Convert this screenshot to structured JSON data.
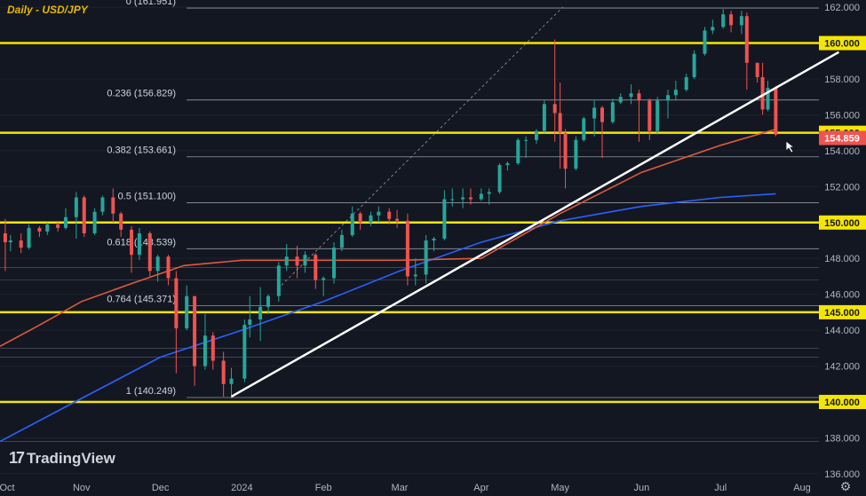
{
  "title": "Daily - USD/JPY",
  "watermark": {
    "logo": "17",
    "text": "TradingView"
  },
  "settings_icon": "gear-icon",
  "colors": {
    "background": "#131722",
    "up": "#26a69a",
    "down": "#ef5350",
    "yellow": "#f5e600",
    "ma_red": "#e05a3a",
    "ma_blue": "#2962ff",
    "trendline": "#ffffff",
    "price_tag": "#ef5350",
    "yellow_tag": "#f5e600"
  },
  "chart_data": {
    "type": "candlestick",
    "title": "Daily - USD/JPY",
    "ylim": [
      135.7,
      162.4
    ],
    "y_ticks": [
      "162.000",
      "160.000",
      "158.000",
      "156.000",
      "154.000",
      "152.000",
      "150.000",
      "148.000",
      "146.000",
      "144.000",
      "142.000",
      "140.000",
      "138.000",
      "136.000"
    ],
    "x_ticks": [
      "Oct",
      "Nov",
      "Dec",
      "2024",
      "Feb",
      "Mar",
      "Apr",
      "May",
      "Jun",
      "Jul",
      "Aug"
    ],
    "current_price": {
      "label": "154.859",
      "value": 154.859
    },
    "horizontal_levels": [
      {
        "value": 160.0,
        "label": "160.000"
      },
      {
        "value": 155.0,
        "label": "155.000"
      },
      {
        "value": 150.0,
        "label": "150.000"
      },
      {
        "value": 145.0,
        "label": "145.000"
      },
      {
        "value": 140.0,
        "label": "140.000"
      }
    ],
    "fibonacci": [
      {
        "label": "0 (161.951)",
        "value": 161.951
      },
      {
        "label": "0.236 (156.829)",
        "value": 156.829
      },
      {
        "label": "0.382 (153.661)",
        "value": 153.661
      },
      {
        "label": "0.5 (151.100)",
        "value": 151.1
      },
      {
        "label": "0.618 (148.539)",
        "value": 148.539
      },
      {
        "label": "0.764 (145.371)",
        "value": 145.371
      },
      {
        "label": "1 (140.249)",
        "value": 140.249
      }
    ],
    "trendline": {
      "x": [
        "2023-12-28",
        "2024-08-15"
      ],
      "y": [
        140.3,
        159.5
      ]
    },
    "dashed_line": {
      "x": [
        "2024-01-16",
        "2024-05-02"
      ],
      "y": [
        146.5,
        162.0
      ]
    },
    "ma_200": {
      "x": [
        "2023-10-01",
        "2023-11-01",
        "2023-12-01",
        "2024-01-01",
        "2024-02-01",
        "2024-03-01",
        "2024-04-01",
        "2024-05-01",
        "2024-06-01",
        "2024-07-01",
        "2024-07-22"
      ],
      "y": [
        137.8,
        140.2,
        142.5,
        144.0,
        145.6,
        147.3,
        148.9,
        150.1,
        150.9,
        151.4,
        151.6
      ]
    },
    "ma_100": {
      "x": [
        "2023-10-01",
        "2023-10-15",
        "2023-11-01",
        "2023-11-20",
        "2023-12-10",
        "2024-01-01",
        "2024-02-01",
        "2024-03-01",
        "2024-04-01",
        "2024-05-01",
        "2024-06-01",
        "2024-07-01",
        "2024-07-22"
      ],
      "y": [
        143.1,
        144.2,
        145.6,
        146.6,
        147.6,
        147.9,
        147.9,
        147.9,
        148.0,
        150.5,
        152.8,
        154.3,
        155.2
      ]
    },
    "candles": [
      {
        "d": "2023-09-29",
        "o": 149.3,
        "h": 149.7,
        "l": 148.8,
        "c": 149.4
      },
      {
        "d": "2023-10-03",
        "o": 149.4,
        "h": 150.2,
        "l": 147.3,
        "c": 148.9
      },
      {
        "d": "2023-10-05",
        "o": 148.9,
        "h": 149.3,
        "l": 148.4,
        "c": 149.0
      },
      {
        "d": "2023-10-09",
        "o": 149.0,
        "h": 149.4,
        "l": 148.3,
        "c": 148.6
      },
      {
        "d": "2023-10-12",
        "o": 148.6,
        "h": 149.9,
        "l": 148.5,
        "c": 149.7
      },
      {
        "d": "2023-10-16",
        "o": 149.7,
        "h": 149.8,
        "l": 149.2,
        "c": 149.5
      },
      {
        "d": "2023-10-19",
        "o": 149.5,
        "h": 150.0,
        "l": 149.3,
        "c": 149.9
      },
      {
        "d": "2023-10-23",
        "o": 149.9,
        "h": 150.1,
        "l": 149.5,
        "c": 149.7
      },
      {
        "d": "2023-10-26",
        "o": 149.7,
        "h": 150.8,
        "l": 149.6,
        "c": 150.3
      },
      {
        "d": "2023-10-30",
        "o": 150.3,
        "h": 151.7,
        "l": 149.1,
        "c": 151.4
      },
      {
        "d": "2023-11-02",
        "o": 151.4,
        "h": 151.5,
        "l": 149.2,
        "c": 149.4
      },
      {
        "d": "2023-11-06",
        "o": 149.4,
        "h": 150.8,
        "l": 149.3,
        "c": 150.6
      },
      {
        "d": "2023-11-09",
        "o": 150.6,
        "h": 151.5,
        "l": 150.4,
        "c": 151.4
      },
      {
        "d": "2023-11-13",
        "o": 151.4,
        "h": 151.9,
        "l": 150.0,
        "c": 150.5
      },
      {
        "d": "2023-11-16",
        "o": 150.5,
        "h": 150.6,
        "l": 149.2,
        "c": 149.6
      },
      {
        "d": "2023-11-20",
        "o": 149.6,
        "h": 149.8,
        "l": 147.2,
        "c": 148.2
      },
      {
        "d": "2023-11-23",
        "o": 148.2,
        "h": 149.7,
        "l": 147.9,
        "c": 149.4
      },
      {
        "d": "2023-11-27",
        "o": 149.4,
        "h": 149.5,
        "l": 147.0,
        "c": 147.3
      },
      {
        "d": "2023-11-30",
        "o": 147.3,
        "h": 148.2,
        "l": 146.7,
        "c": 148.1
      },
      {
        "d": "2023-12-04",
        "o": 148.1,
        "h": 148.2,
        "l": 146.5,
        "c": 146.9
      },
      {
        "d": "2023-12-07",
        "o": 146.9,
        "h": 147.3,
        "l": 141.6,
        "c": 144.1
      },
      {
        "d": "2023-12-11",
        "o": 144.1,
        "h": 146.5,
        "l": 144.0,
        "c": 145.9
      },
      {
        "d": "2023-12-14",
        "o": 145.9,
        "h": 145.9,
        "l": 140.9,
        "c": 142.0
      },
      {
        "d": "2023-12-18",
        "o": 142.0,
        "h": 144.9,
        "l": 141.8,
        "c": 143.7
      },
      {
        "d": "2023-12-21",
        "o": 143.7,
        "h": 143.9,
        "l": 141.8,
        "c": 142.3
      },
      {
        "d": "2023-12-25",
        "o": 142.3,
        "h": 142.8,
        "l": 140.3,
        "c": 141.0
      },
      {
        "d": "2023-12-28",
        "o": 141.0,
        "h": 141.9,
        "l": 140.2,
        "c": 141.3
      },
      {
        "d": "2024-01-02",
        "o": 141.3,
        "h": 144.6,
        "l": 141.1,
        "c": 144.3
      },
      {
        "d": "2024-01-04",
        "o": 144.3,
        "h": 145.9,
        "l": 143.6,
        "c": 144.6
      },
      {
        "d": "2024-01-08",
        "o": 144.6,
        "h": 146.4,
        "l": 143.4,
        "c": 145.3
      },
      {
        "d": "2024-01-11",
        "o": 145.3,
        "h": 146.0,
        "l": 144.9,
        "c": 145.9
      },
      {
        "d": "2024-01-15",
        "o": 145.9,
        "h": 147.8,
        "l": 145.6,
        "c": 147.6
      },
      {
        "d": "2024-01-18",
        "o": 147.6,
        "h": 148.8,
        "l": 147.3,
        "c": 148.1
      },
      {
        "d": "2024-01-22",
        "o": 148.1,
        "h": 148.7,
        "l": 146.9,
        "c": 147.6
      },
      {
        "d": "2024-01-25",
        "o": 147.6,
        "h": 148.4,
        "l": 147.2,
        "c": 148.2
      },
      {
        "d": "2024-01-29",
        "o": 148.2,
        "h": 148.3,
        "l": 146.3,
        "c": 146.8
      },
      {
        "d": "2024-02-01",
        "o": 146.8,
        "h": 147.0,
        "l": 145.9,
        "c": 146.9
      },
      {
        "d": "2024-02-05",
        "o": 146.9,
        "h": 148.9,
        "l": 146.6,
        "c": 148.6
      },
      {
        "d": "2024-02-08",
        "o": 148.6,
        "h": 149.6,
        "l": 148.4,
        "c": 149.3
      },
      {
        "d": "2024-02-12",
        "o": 149.3,
        "h": 150.9,
        "l": 149.2,
        "c": 150.5
      },
      {
        "d": "2024-02-15",
        "o": 150.5,
        "h": 150.6,
        "l": 149.6,
        "c": 150.0
      },
      {
        "d": "2024-02-19",
        "o": 150.0,
        "h": 150.6,
        "l": 149.8,
        "c": 150.4
      },
      {
        "d": "2024-02-22",
        "o": 150.4,
        "h": 150.9,
        "l": 150.0,
        "c": 150.6
      },
      {
        "d": "2024-02-26",
        "o": 150.6,
        "h": 150.8,
        "l": 149.9,
        "c": 150.2
      },
      {
        "d": "2024-02-29",
        "o": 150.2,
        "h": 150.7,
        "l": 149.7,
        "c": 150.1
      },
      {
        "d": "2024-03-04",
        "o": 150.1,
        "h": 150.5,
        "l": 146.5,
        "c": 147.0
      },
      {
        "d": "2024-03-07",
        "o": 147.0,
        "h": 148.0,
        "l": 146.5,
        "c": 147.1
      },
      {
        "d": "2024-03-11",
        "o": 147.1,
        "h": 149.3,
        "l": 146.6,
        "c": 149.0
      },
      {
        "d": "2024-03-14",
        "o": 149.0,
        "h": 149.2,
        "l": 148.4,
        "c": 149.1
      },
      {
        "d": "2024-03-18",
        "o": 149.1,
        "h": 151.8,
        "l": 149.0,
        "c": 151.3
      },
      {
        "d": "2024-03-21",
        "o": 151.3,
        "h": 151.9,
        "l": 150.9,
        "c": 151.3
      },
      {
        "d": "2024-03-25",
        "o": 151.3,
        "h": 151.9,
        "l": 150.8,
        "c": 151.4
      },
      {
        "d": "2024-03-28",
        "o": 151.4,
        "h": 151.9,
        "l": 151.0,
        "c": 151.3
      },
      {
        "d": "2024-04-01",
        "o": 151.3,
        "h": 151.9,
        "l": 151.2,
        "c": 151.6
      },
      {
        "d": "2024-04-04",
        "o": 151.6,
        "h": 151.9,
        "l": 151.0,
        "c": 151.7
      },
      {
        "d": "2024-04-08",
        "o": 151.7,
        "h": 153.3,
        "l": 151.6,
        "c": 153.2
      },
      {
        "d": "2024-04-11",
        "o": 153.2,
        "h": 153.4,
        "l": 152.9,
        "c": 153.3
      },
      {
        "d": "2024-04-15",
        "o": 153.3,
        "h": 154.7,
        "l": 153.2,
        "c": 154.6
      },
      {
        "d": "2024-04-18",
        "o": 154.6,
        "h": 154.8,
        "l": 153.6,
        "c": 154.6
      },
      {
        "d": "2024-04-22",
        "o": 154.6,
        "h": 155.2,
        "l": 154.4,
        "c": 155.1
      },
      {
        "d": "2024-04-25",
        "o": 155.1,
        "h": 156.8,
        "l": 155.0,
        "c": 156.6
      },
      {
        "d": "2024-04-29",
        "o": 156.6,
        "h": 160.2,
        "l": 154.5,
        "c": 156.1
      },
      {
        "d": "2024-05-01",
        "o": 156.1,
        "h": 157.8,
        "l": 153.0,
        "c": 155.0
      },
      {
        "d": "2024-05-03",
        "o": 155.0,
        "h": 155.2,
        "l": 151.9,
        "c": 153.0
      },
      {
        "d": "2024-05-07",
        "o": 153.0,
        "h": 154.8,
        "l": 152.9,
        "c": 154.6
      },
      {
        "d": "2024-05-10",
        "o": 154.6,
        "h": 155.9,
        "l": 154.5,
        "c": 155.8
      },
      {
        "d": "2024-05-14",
        "o": 155.8,
        "h": 156.8,
        "l": 154.8,
        "c": 156.4
      },
      {
        "d": "2024-05-17",
        "o": 156.4,
        "h": 156.5,
        "l": 153.6,
        "c": 155.6
      },
      {
        "d": "2024-05-21",
        "o": 155.6,
        "h": 156.9,
        "l": 155.5,
        "c": 156.7
      },
      {
        "d": "2024-05-24",
        "o": 156.7,
        "h": 157.2,
        "l": 156.6,
        "c": 157.0
      },
      {
        "d": "2024-05-28",
        "o": 157.0,
        "h": 157.7,
        "l": 156.6,
        "c": 157.2
      },
      {
        "d": "2024-05-31",
        "o": 157.2,
        "h": 157.4,
        "l": 154.5,
        "c": 156.8
      },
      {
        "d": "2024-06-04",
        "o": 156.8,
        "h": 156.9,
        "l": 154.6,
        "c": 155.1
      },
      {
        "d": "2024-06-07",
        "o": 155.1,
        "h": 157.0,
        "l": 154.9,
        "c": 156.8
      },
      {
        "d": "2024-06-11",
        "o": 156.8,
        "h": 157.4,
        "l": 155.8,
        "c": 157.1
      },
      {
        "d": "2024-06-14",
        "o": 157.1,
        "h": 157.9,
        "l": 156.8,
        "c": 157.4
      },
      {
        "d": "2024-06-18",
        "o": 157.4,
        "h": 158.3,
        "l": 157.3,
        "c": 158.1
      },
      {
        "d": "2024-06-21",
        "o": 158.1,
        "h": 159.6,
        "l": 158.0,
        "c": 159.4
      },
      {
        "d": "2024-06-25",
        "o": 159.4,
        "h": 160.9,
        "l": 159.3,
        "c": 160.7
      },
      {
        "d": "2024-06-28",
        "o": 160.7,
        "h": 161.3,
        "l": 160.5,
        "c": 160.9
      },
      {
        "d": "2024-07-02",
        "o": 160.9,
        "h": 161.9,
        "l": 160.8,
        "c": 161.6
      },
      {
        "d": "2024-07-05",
        "o": 161.6,
        "h": 161.8,
        "l": 160.6,
        "c": 161.0
      },
      {
        "d": "2024-07-09",
        "o": 161.0,
        "h": 161.8,
        "l": 160.5,
        "c": 161.5
      },
      {
        "d": "2024-07-11",
        "o": 161.5,
        "h": 161.7,
        "l": 157.4,
        "c": 158.9
      },
      {
        "d": "2024-07-15",
        "o": 158.9,
        "h": 158.9,
        "l": 157.8,
        "c": 158.1
      },
      {
        "d": "2024-07-17",
        "o": 158.1,
        "h": 158.9,
        "l": 156.0,
        "c": 156.3
      },
      {
        "d": "2024-07-19",
        "o": 156.3,
        "h": 157.9,
        "l": 156.2,
        "c": 157.5
      },
      {
        "d": "2024-07-22",
        "o": 157.5,
        "h": 157.6,
        "l": 154.8,
        "c": 154.9
      }
    ]
  }
}
